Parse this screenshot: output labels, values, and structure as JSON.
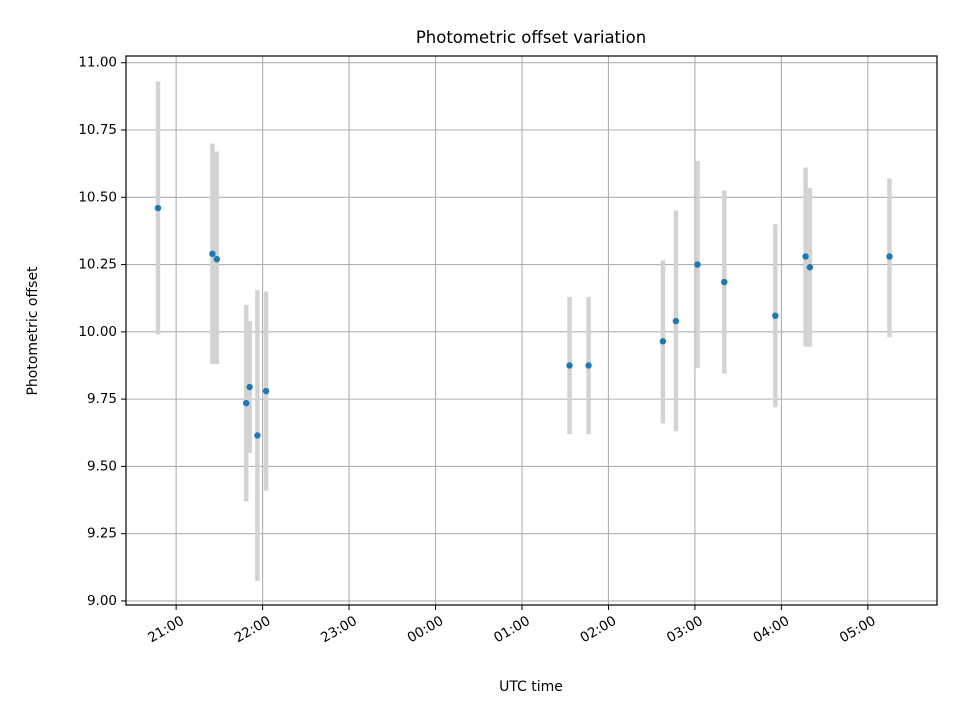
{
  "chart_data": {
    "type": "scatter",
    "title": "Photometric offset variation",
    "xlabel": "UTC time",
    "ylabel": "Photometric offset",
    "grid": true,
    "x_unit": "hours since 20:00 UTC",
    "xlim": [
      0.42,
      9.8
    ],
    "ylim": [
      8.985,
      11.025
    ],
    "x_ticks": [
      {
        "value": 1,
        "label": "21:00"
      },
      {
        "value": 2,
        "label": "22:00"
      },
      {
        "value": 3,
        "label": "23:00"
      },
      {
        "value": 4,
        "label": "00:00"
      },
      {
        "value": 5,
        "label": "01:00"
      },
      {
        "value": 6,
        "label": "02:00"
      },
      {
        "value": 7,
        "label": "03:00"
      },
      {
        "value": 8,
        "label": "04:00"
      },
      {
        "value": 9,
        "label": "05:00"
      }
    ],
    "y_ticks": [
      {
        "value": 9.0,
        "label": "9.00"
      },
      {
        "value": 9.25,
        "label": "9.25"
      },
      {
        "value": 9.5,
        "label": "9.50"
      },
      {
        "value": 9.75,
        "label": "9.75"
      },
      {
        "value": 10.0,
        "label": "10.00"
      },
      {
        "value": 10.25,
        "label": "10.25"
      },
      {
        "value": 10.5,
        "label": "10.50"
      },
      {
        "value": 10.75,
        "label": "10.75"
      },
      {
        "value": 11.0,
        "label": "11.00"
      }
    ],
    "point_color": "#1f77b4",
    "errorbar_color": "#d3d3d3",
    "points": [
      {
        "x": 0.79,
        "y": 10.46,
        "ylow": 9.99,
        "yhigh": 10.93
      },
      {
        "x": 1.42,
        "y": 10.29,
        "ylow": 9.88,
        "yhigh": 10.7
      },
      {
        "x": 1.47,
        "y": 10.27,
        "ylow": 9.88,
        "yhigh": 10.67
      },
      {
        "x": 1.81,
        "y": 9.735,
        "ylow": 9.37,
        "yhigh": 10.1
      },
      {
        "x": 1.85,
        "y": 9.795,
        "ylow": 9.55,
        "yhigh": 10.04
      },
      {
        "x": 1.94,
        "y": 9.615,
        "ylow": 9.075,
        "yhigh": 10.155
      },
      {
        "x": 2.04,
        "y": 9.78,
        "ylow": 9.41,
        "yhigh": 10.15
      },
      {
        "x": 5.55,
        "y": 9.875,
        "ylow": 9.62,
        "yhigh": 10.13
      },
      {
        "x": 5.77,
        "y": 9.875,
        "ylow": 9.62,
        "yhigh": 10.13
      },
      {
        "x": 6.63,
        "y": 9.965,
        "ylow": 9.66,
        "yhigh": 10.265
      },
      {
        "x": 6.78,
        "y": 10.04,
        "ylow": 9.63,
        "yhigh": 10.45
      },
      {
        "x": 7.03,
        "y": 10.25,
        "ylow": 9.865,
        "yhigh": 10.635
      },
      {
        "x": 7.34,
        "y": 10.185,
        "ylow": 9.845,
        "yhigh": 10.525
      },
      {
        "x": 7.93,
        "y": 10.06,
        "ylow": 9.72,
        "yhigh": 10.4
      },
      {
        "x": 8.28,
        "y": 10.28,
        "ylow": 9.945,
        "yhigh": 10.61
      },
      {
        "x": 8.33,
        "y": 10.24,
        "ylow": 9.945,
        "yhigh": 10.535
      },
      {
        "x": 9.25,
        "y": 10.28,
        "ylow": 9.98,
        "yhigh": 10.57
      }
    ]
  }
}
